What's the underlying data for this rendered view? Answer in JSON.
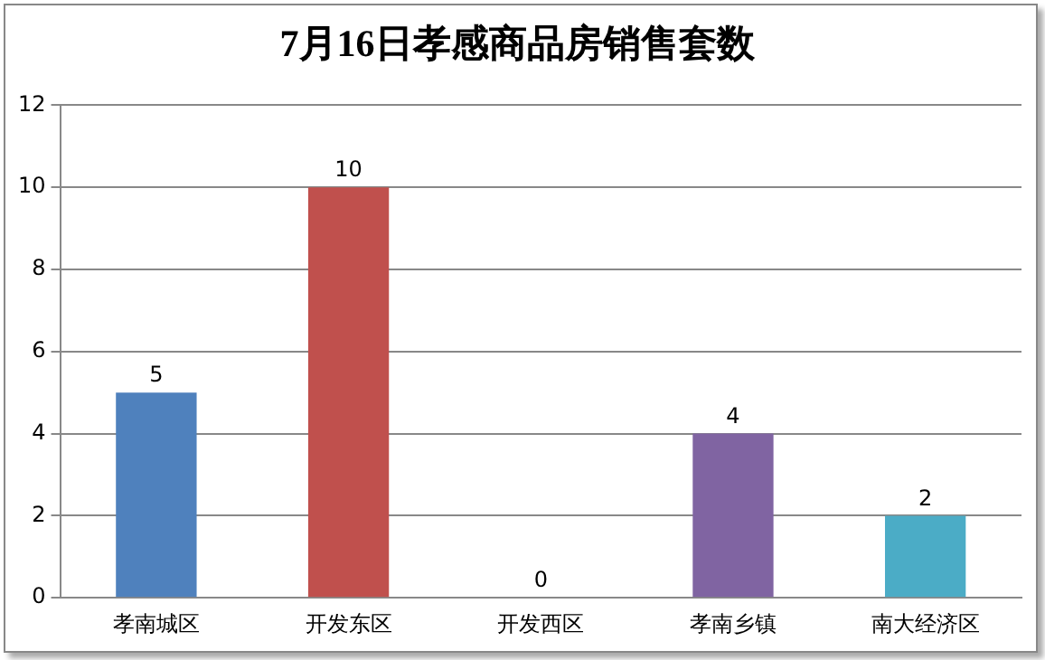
{
  "chart_data": {
    "type": "bar",
    "title": "7月16日孝感商品房销售套数",
    "categories": [
      "孝南城区",
      "开发东区",
      "开发西区",
      "孝南乡镇",
      "南大经济区"
    ],
    "values": [
      5,
      10,
      0,
      4,
      2
    ],
    "colors": [
      "#4f81bd",
      "#c0504d",
      "#9bbb59",
      "#8064a2",
      "#4bacc6"
    ],
    "ylim": [
      0,
      12
    ],
    "yticks": [
      0,
      2,
      4,
      6,
      8,
      10,
      12
    ],
    "grid": "y",
    "data_labels": true
  }
}
